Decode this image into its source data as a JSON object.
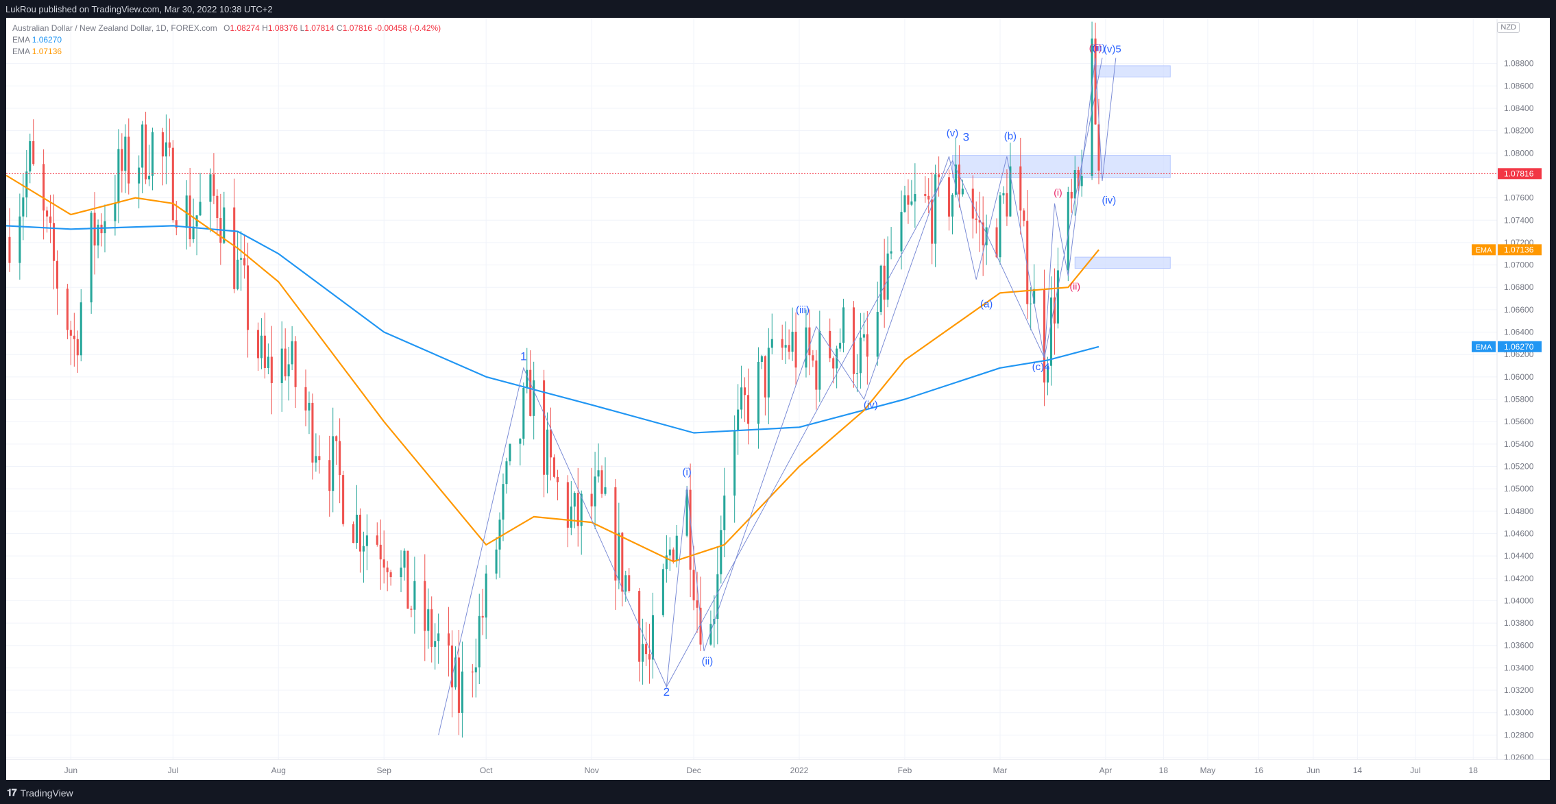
{
  "header": {
    "text": "LukRou published on TradingView.com, Mar 30, 2022 10:38 UTC+2"
  },
  "legend": {
    "symbol": "Australian Dollar / New Zealand Dollar, 1D, FOREX.com",
    "ohlc": [
      {
        "key": "O",
        "value": "1.08274"
      },
      {
        "key": "H",
        "value": "1.08376"
      },
      {
        "key": "L",
        "value": "1.07814"
      },
      {
        "key": "C",
        "value": "1.07816"
      }
    ],
    "change": "-0.00458 (-0.42%)",
    "ema_long_label": "EMA",
    "ema_long_value": "1.06270",
    "ema_short_label": "EMA",
    "ema_short_value": "1.07136"
  },
  "currency_button": "NZD",
  "footer": {
    "logo_mark": "𝟏𝟕",
    "logo_text": "TradingView"
  },
  "colors": {
    "up": "#26a69a",
    "down": "#ef5350",
    "ema_long": "#2196f3",
    "ema_short": "#ff9800",
    "wave_label": "#2962ff",
    "wave_label_alt": "#e91e63",
    "zone": "#cfdcff",
    "price_line": "#f23645"
  },
  "chart_data": {
    "type": "candlestick",
    "title": "Australian Dollar / New Zealand Dollar, 1D, FOREX.com",
    "ylim": [
      1.026,
      1.09
    ],
    "y_ticks": [
      "1.08800",
      "1.08600",
      "1.08400",
      "1.08200",
      "1.08000",
      "1.07600",
      "1.07400",
      "1.07200",
      "1.07000",
      "1.06800",
      "1.06600",
      "1.06400",
      "1.06200",
      "1.06000",
      "1.05800",
      "1.05600",
      "1.05400",
      "1.05200",
      "1.05000",
      "1.04800",
      "1.04600",
      "1.04400",
      "1.04200",
      "1.04000",
      "1.03800",
      "1.03600",
      "1.03400",
      "1.03200",
      "1.03000",
      "1.02800",
      "1.02600"
    ],
    "x_ticks": [
      "Jun",
      "Jul",
      "Aug",
      "Sep",
      "Oct",
      "Nov",
      "Dec",
      "2022",
      "Feb",
      "Mar",
      "Apr",
      "18",
      "May",
      "16",
      "Jun",
      "14",
      "Jul",
      "18"
    ],
    "x_tick_dates": [
      "2021-06-01",
      "2021-07-01",
      "2021-08-01",
      "2021-09-01",
      "2021-10-01",
      "2021-11-01",
      "2021-12-01",
      "2022-01-01",
      "2022-02-01",
      "2022-03-01",
      "2022-04-01",
      "2022-04-18",
      "2022-05-01",
      "2022-05-16",
      "2022-06-01",
      "2022-06-14",
      "2022-07-01",
      "2022-07-18"
    ],
    "date_range": [
      "2021-05-13",
      "2022-07-25"
    ],
    "last_price": {
      "value": 1.07816,
      "label": "1.07816"
    },
    "ema_tags": [
      {
        "label": "EMA",
        "value": 1.07136,
        "text": "1.07136",
        "color": "#ff9800"
      },
      {
        "label": "EMA",
        "value": 1.0627,
        "text": "1.06270",
        "color": "#2196f3"
      }
    ],
    "price_anchors": [
      [
        "2021-05-13",
        1.0725
      ],
      [
        "2021-05-20",
        1.079
      ],
      [
        "2021-05-26",
        1.071
      ],
      [
        "2021-06-02",
        1.063
      ],
      [
        "2021-06-07",
        1.072
      ],
      [
        "2021-06-15",
        1.078
      ],
      [
        "2021-06-25",
        1.081
      ],
      [
        "2021-07-06",
        1.074
      ],
      [
        "2021-07-14",
        1.076
      ],
      [
        "2021-07-22",
        1.067
      ],
      [
        "2021-07-28",
        1.06
      ],
      [
        "2021-08-03",
        1.062
      ],
      [
        "2021-08-10",
        1.056
      ],
      [
        "2021-08-17",
        1.052
      ],
      [
        "2021-08-24",
        1.047
      ],
      [
        "2021-09-02",
        1.045
      ],
      [
        "2021-09-10",
        1.039
      ],
      [
        "2021-09-17",
        1.036
      ],
      [
        "2021-09-23",
        1.031
      ],
      [
        "2021-10-01",
        1.04
      ],
      [
        "2021-10-07",
        1.05
      ],
      [
        "2021-10-14",
        1.059
      ],
      [
        "2021-10-20",
        1.051
      ],
      [
        "2021-10-27",
        1.047
      ],
      [
        "2021-11-03",
        1.049
      ],
      [
        "2021-11-12",
        1.041
      ],
      [
        "2021-11-18",
        1.034
      ],
      [
        "2021-11-25",
        1.046
      ],
      [
        "2021-11-29",
        1.049
      ],
      [
        "2021-12-02",
        1.04
      ],
      [
        "2021-12-06",
        1.037
      ],
      [
        "2021-12-10",
        1.051
      ],
      [
        "2021-12-17",
        1.058
      ],
      [
        "2021-12-24",
        1.061
      ],
      [
        "2021-12-29",
        1.063
      ],
      [
        "2022-01-05",
        1.061
      ],
      [
        "2022-01-14",
        1.064
      ],
      [
        "2022-01-21",
        1.061
      ],
      [
        "2022-01-28",
        1.071
      ],
      [
        "2022-02-04",
        1.075
      ],
      [
        "2022-02-11",
        1.075
      ],
      [
        "2022-02-18",
        1.078
      ],
      [
        "2022-02-24",
        1.072
      ],
      [
        "2022-03-01",
        1.074
      ],
      [
        "2022-03-04",
        1.078
      ],
      [
        "2022-03-08",
        1.071
      ],
      [
        "2022-03-14",
        1.062
      ],
      [
        "2022-03-17",
        1.067
      ],
      [
        "2022-03-21",
        1.074
      ],
      [
        "2022-03-24",
        1.076
      ],
      [
        "2022-03-25",
        1.08
      ],
      [
        "2022-03-28",
        1.087
      ],
      [
        "2022-03-29",
        1.0827
      ],
      [
        "2022-03-30",
        1.07816
      ]
    ],
    "series": [
      {
        "name": "EMA",
        "value_label": "1.06270",
        "color": "#2196f3",
        "points": [
          [
            "2021-05-13",
            1.0735
          ],
          [
            "2021-06-01",
            1.0732
          ],
          [
            "2021-07-01",
            1.0735
          ],
          [
            "2021-07-20",
            1.073
          ],
          [
            "2021-08-01",
            1.071
          ],
          [
            "2021-09-01",
            1.064
          ],
          [
            "2021-10-01",
            1.06
          ],
          [
            "2021-11-01",
            1.0575
          ],
          [
            "2021-12-01",
            1.055
          ],
          [
            "2022-01-01",
            1.0555
          ],
          [
            "2022-02-01",
            1.058
          ],
          [
            "2022-03-01",
            1.0608
          ],
          [
            "2022-03-15",
            1.0615
          ],
          [
            "2022-03-30",
            1.0627
          ]
        ]
      },
      {
        "name": "EMA",
        "value_label": "1.07136",
        "color": "#ff9800",
        "points": [
          [
            "2021-05-13",
            1.078
          ],
          [
            "2021-06-01",
            1.0745
          ],
          [
            "2021-06-20",
            1.076
          ],
          [
            "2021-07-01",
            1.0755
          ],
          [
            "2021-07-20",
            1.0715
          ],
          [
            "2021-08-01",
            1.0685
          ],
          [
            "2021-09-01",
            1.056
          ],
          [
            "2021-10-01",
            1.045
          ],
          [
            "2021-10-15",
            1.0475
          ],
          [
            "2021-11-01",
            1.047
          ],
          [
            "2021-11-25",
            1.0435
          ],
          [
            "2021-12-10",
            1.045
          ],
          [
            "2022-01-01",
            1.052
          ],
          [
            "2022-01-20",
            1.057
          ],
          [
            "2022-02-01",
            1.0615
          ],
          [
            "2022-03-01",
            1.0675
          ],
          [
            "2022-03-21",
            1.068
          ],
          [
            "2022-03-30",
            1.07136
          ]
        ]
      }
    ],
    "zones": [
      {
        "from": "2022-02-15",
        "to": "2022-04-20",
        "y1": 1.0778,
        "y2": 1.0798
      },
      {
        "from": "2022-03-28",
        "to": "2022-04-20",
        "y1": 1.0868,
        "y2": 1.0878
      },
      {
        "from": "2022-03-23",
        "to": "2022-04-20",
        "y1": 1.0697,
        "y2": 1.0707
      }
    ],
    "wave_lines": [
      [
        [
          "2021-09-17",
          1.028
        ],
        [
          "2021-10-12",
          1.0608
        ],
        [
          "2021-11-23",
          1.0323
        ],
        [
          "2022-02-15",
          1.0793
        ],
        [
          "2022-03-14",
          1.0617
        ],
        [
          "2022-03-31",
          1.0885
        ]
      ],
      [
        [
          "2021-11-23",
          1.0323
        ],
        [
          "2021-11-29",
          1.0502
        ],
        [
          "2021-12-04",
          1.0355
        ],
        [
          "2022-01-06",
          1.0645
        ],
        [
          "2022-01-20",
          1.058
        ],
        [
          "2022-02-14",
          1.0797
        ]
      ],
      [
        [
          "2022-02-14",
          1.0797
        ],
        [
          "2022-02-22",
          1.0687
        ],
        [
          "2022-03-03",
          1.0797
        ],
        [
          "2022-03-14",
          1.0617
        ]
      ],
      [
        [
          "2022-03-14",
          1.0617
        ],
        [
          "2022-03-17",
          1.0755
        ],
        [
          "2022-03-21",
          1.069
        ],
        [
          "2022-03-29",
          1.0885
        ],
        [
          "2022-03-31",
          1.0775
        ],
        [
          "2022-04-04",
          1.0885
        ]
      ]
    ],
    "annotations": [
      {
        "text": "1",
        "date": "2021-10-12",
        "price": 1.0615,
        "color": "#2962ff",
        "size": 17
      },
      {
        "text": "2",
        "date": "2021-11-23",
        "price": 1.0315,
        "color": "#2962ff",
        "size": 17
      },
      {
        "text": "3",
        "date": "2022-02-19",
        "price": 1.0811,
        "color": "#2962ff",
        "size": 17
      },
      {
        "text": "(c)4",
        "date": "2022-03-13",
        "price": 1.0606,
        "color": "#2962ff",
        "size": 15
      },
      {
        "text": "(v)5",
        "date": "2022-04-03",
        "price": 1.089,
        "color": "#2962ff",
        "size": 15
      },
      {
        "text": "(i)",
        "date": "2021-11-29",
        "price": 1.0512,
        "color": "#2962ff",
        "size": 15
      },
      {
        "text": "(ii)",
        "date": "2021-12-05",
        "price": 1.0343,
        "color": "#2962ff",
        "size": 15
      },
      {
        "text": "(iii)",
        "date": "2022-01-02",
        "price": 1.0657,
        "color": "#2962ff",
        "size": 15
      },
      {
        "text": "(iv)",
        "date": "2022-01-22",
        "price": 1.0572,
        "color": "#2962ff",
        "size": 15
      },
      {
        "text": "(v)",
        "date": "2022-02-15",
        "price": 1.0815,
        "color": "#2962ff",
        "size": 15
      },
      {
        "text": "(a)",
        "date": "2022-02-25",
        "price": 1.0662,
        "color": "#2962ff",
        "size": 15
      },
      {
        "text": "(b)",
        "date": "2022-03-04",
        "price": 1.0812,
        "color": "#2962ff",
        "size": 15
      },
      {
        "text": "(i)",
        "date": "2022-03-18",
        "price": 1.0762,
        "color": "#e91e63",
        "size": 14
      },
      {
        "text": "(ii)",
        "date": "2022-03-23",
        "price": 1.0678,
        "color": "#e91e63",
        "size": 14
      },
      {
        "text": "(iii)",
        "date": "2022-03-29",
        "price": 1.0891,
        "color": "#e91e63",
        "size": 14
      },
      {
        "text": "(iii)",
        "date": "2022-03-30",
        "price": 1.0891,
        "color": "#2962ff",
        "size": 14
      },
      {
        "text": "(iv)",
        "date": "2022-04-02",
        "price": 1.0755,
        "color": "#2962ff",
        "size": 15
      }
    ]
  }
}
